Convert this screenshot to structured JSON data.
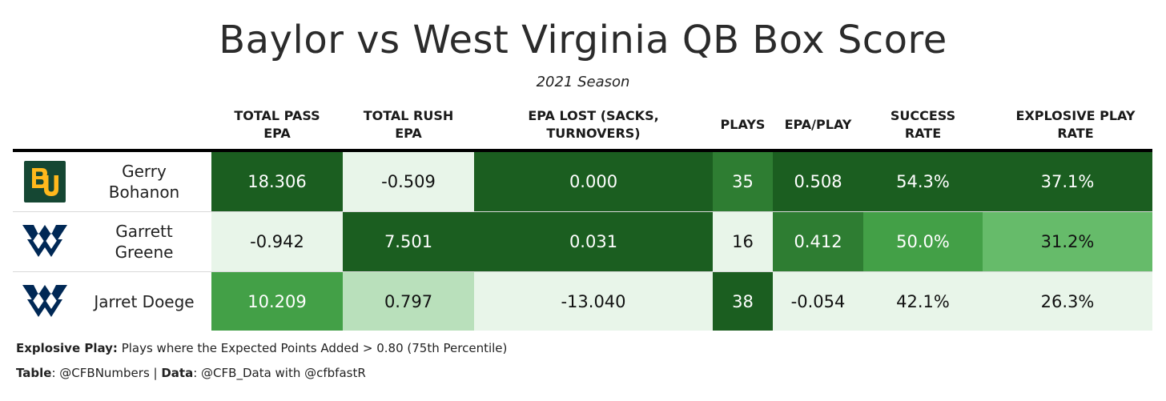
{
  "title": "Baylor vs West Virginia QB Box Score",
  "subtitle": "2021 Season",
  "columns": [
    {
      "line1": "TOTAL PASS",
      "line2": "EPA"
    },
    {
      "line1": "TOTAL RUSH",
      "line2": "EPA"
    },
    {
      "line1": "EPA LOST (SACKS,",
      "line2": "TURNOVERS)"
    },
    {
      "line1": "PLAYS",
      "line2": ""
    },
    {
      "line1": "EPA/PLAY",
      "line2": ""
    },
    {
      "line1": "SUCCESS",
      "line2": "RATE"
    },
    {
      "line1": "EXPLOSIVE PLAY",
      "line2": "RATE"
    }
  ],
  "colors": {
    "dark_green": "#1b5e20",
    "mid_dark_green": "#2e7d32",
    "mid_green": "#43a047",
    "light_mid_green": "#66bb6a",
    "pale_green": "#b9e0bb",
    "very_pale_green": "#e8f5e9",
    "baylor_green": "#154733",
    "baylor_gold": "#ffb81c",
    "wvu_navy": "#002855"
  },
  "chart_data": {
    "type": "table",
    "title": "Baylor vs West Virginia QB Box Score",
    "subtitle": "2021 Season",
    "columns": [
      "TOTAL PASS EPA",
      "TOTAL RUSH EPA",
      "EPA LOST (SACKS, TURNOVERS)",
      "PLAYS",
      "EPA/PLAY",
      "SUCCESS RATE",
      "EXPLOSIVE PLAY RATE"
    ],
    "rows": [
      {
        "team": "Baylor",
        "logo": "baylor-bu-logo",
        "name_line1": "Gerry",
        "name_line2": "Bohanon",
        "values": [
          "18.306",
          "-0.509",
          "0.000",
          "35",
          "0.508",
          "54.3%",
          "37.1%"
        ],
        "shades": [
          "#1b5e20",
          "#e8f5e9",
          "#1b5e20",
          "#2e7d32",
          "#1b5e20",
          "#1b5e20",
          "#1b5e20"
        ]
      },
      {
        "team": "West Virginia",
        "logo": "wvu-flying-wv-logo",
        "name_line1": "Garrett",
        "name_line2": "Greene",
        "values": [
          "-0.942",
          "7.501",
          "0.031",
          "16",
          "0.412",
          "50.0%",
          "31.2%"
        ],
        "shades": [
          "#e8f5e9",
          "#1b5e20",
          "#1b5e20",
          "#e8f5e9",
          "#2e7d32",
          "#43a047",
          "#66bb6a"
        ]
      },
      {
        "team": "West Virginia",
        "logo": "wvu-flying-wv-logo",
        "name_line1": "Jarret Doege",
        "name_line2": "",
        "values": [
          "10.209",
          "0.797",
          "-13.040",
          "38",
          "-0.054",
          "42.1%",
          "26.3%"
        ],
        "shades": [
          "#43a047",
          "#b9e0bb",
          "#e8f5e9",
          "#1b5e20",
          "#e8f5e9",
          "#e8f5e9",
          "#e8f5e9"
        ]
      }
    ]
  },
  "footer": {
    "note_label": "Explosive Play:",
    "note_text": " Plays where the Expected Points Added > 0.80 (75th Percentile)",
    "table_label": "Table",
    "table_text": ": @CFBNumbers | ",
    "data_label": "Data",
    "data_text": ": @CFB_Data with @cfbfastR"
  }
}
